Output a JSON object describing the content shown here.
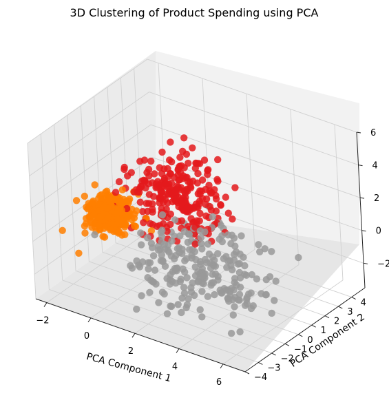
{
  "chart_data": {
    "type": "scatter",
    "title": "3D Clustering of Product Spending using PCA",
    "xlabel": "PCA Component 1",
    "ylabel": "PCA Component 2",
    "zlabel": "",
    "xlim": [
      -2.5,
      7.0
    ],
    "ylim": [
      -4.0,
      5.0
    ],
    "zlim": [
      -3.5,
      6.0
    ],
    "xticks": [
      "−2",
      "0",
      "2",
      "4",
      "6"
    ],
    "yticks": [
      "−4",
      "−3",
      "−2",
      "−1",
      "0",
      "1",
      "2",
      "3",
      "4"
    ],
    "zticks": [
      "−2",
      "0",
      "2",
      "4",
      "6"
    ],
    "grid": true,
    "legend": "none",
    "colors": {
      "pane": "#f2f2f2",
      "pane_side": "#ebebeb",
      "grid": "#d0d0d0"
    },
    "series": [
      {
        "color": "#ff7f00",
        "point_count": 320,
        "center": [
          -1.3,
          -0.2,
          0.1
        ],
        "spread": [
          0.45,
          0.55,
          0.45
        ]
      },
      {
        "color": "#e41a1c",
        "point_count": 260,
        "center": [
          1.0,
          1.2,
          1.4
        ],
        "spread": [
          0.9,
          0.9,
          1.1
        ]
      },
      {
        "color": "#999999",
        "point_count": 240,
        "center": [
          3.2,
          -1.0,
          -0.6
        ],
        "spread": [
          1.3,
          1.3,
          1.0
        ]
      }
    ]
  }
}
